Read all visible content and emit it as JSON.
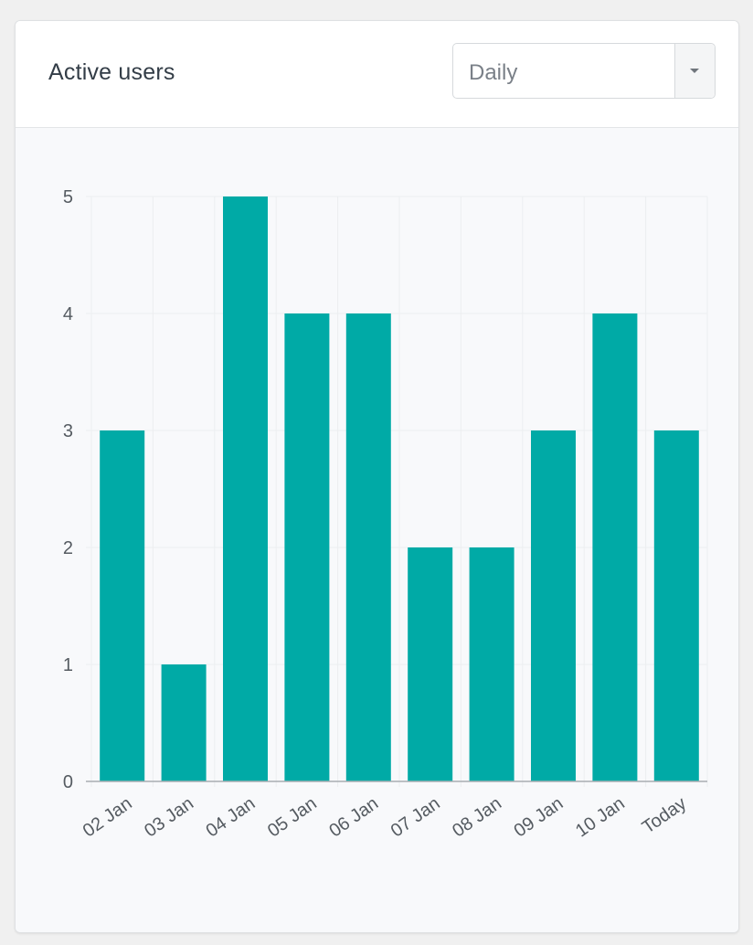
{
  "widget": {
    "title": "Active users",
    "period_select": {
      "selected": "Daily"
    }
  },
  "colors": {
    "bar": "#00aaa6",
    "grid": "#eceef0",
    "axis": "#a9adb2",
    "tick_text": "#555b61"
  },
  "chart_data": {
    "type": "bar",
    "categories": [
      "02 Jan",
      "03 Jan",
      "04 Jan",
      "05 Jan",
      "06 Jan",
      "07 Jan",
      "08 Jan",
      "09 Jan",
      "10 Jan",
      "Today"
    ],
    "values": [
      3,
      1,
      5,
      4,
      4,
      2,
      2,
      3,
      4,
      3
    ],
    "yticks": [
      0,
      1,
      2,
      3,
      4,
      5
    ],
    "ylim": [
      0,
      5
    ],
    "grid": true
  }
}
